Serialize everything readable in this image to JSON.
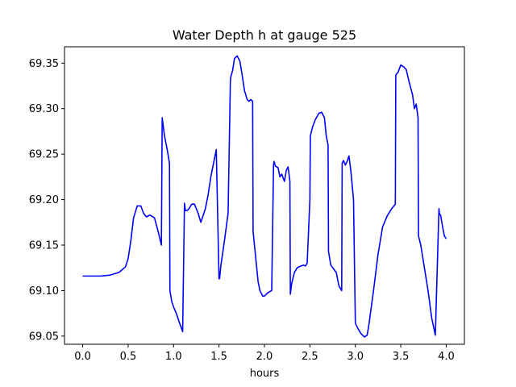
{
  "chart_data": {
    "type": "line",
    "title": "Water Depth h at gauge 525",
    "xlabel": "hours",
    "ylabel": "",
    "xlim": [
      -0.2,
      4.2
    ],
    "ylim": [
      69.041,
      69.368
    ],
    "xticks": [
      0.0,
      0.5,
      1.0,
      1.5,
      2.0,
      2.5,
      3.0,
      3.5,
      4.0
    ],
    "xtick_labels": [
      "0.0",
      "0.5",
      "1.0",
      "1.5",
      "2.0",
      "2.5",
      "3.0",
      "3.5",
      "4.0"
    ],
    "yticks": [
      69.05,
      69.1,
      69.15,
      69.2,
      69.25,
      69.3,
      69.35
    ],
    "ytick_labels": [
      "69.05",
      "69.10",
      "69.15",
      "69.20",
      "69.25",
      "69.30",
      "69.35"
    ],
    "grid": false,
    "series": [
      {
        "color": "#0000ff",
        "x": [
          0.0,
          0.2,
          0.3,
          0.4,
          0.47,
          0.5,
          0.53,
          0.56,
          0.6,
          0.64,
          0.67,
          0.7,
          0.74,
          0.79,
          0.83,
          0.866,
          0.875,
          0.9,
          0.93,
          0.955,
          0.96,
          0.98,
          1.0,
          1.03,
          1.06,
          1.1,
          1.12,
          1.13,
          1.15,
          1.17,
          1.2,
          1.23,
          1.27,
          1.3,
          1.35,
          1.38,
          1.41,
          1.44,
          1.47,
          1.5,
          1.506,
          1.52,
          1.56,
          1.6,
          1.625,
          1.63,
          1.65,
          1.67,
          1.7,
          1.73,
          1.75,
          1.78,
          1.81,
          1.83,
          1.85,
          1.87,
          1.875,
          1.9,
          1.93,
          1.95,
          1.98,
          2.0,
          2.03,
          2.06,
          2.08,
          2.1,
          2.105,
          2.12,
          2.15,
          2.17,
          2.19,
          2.22,
          2.24,
          2.26,
          2.28,
          2.285,
          2.3,
          2.33,
          2.36,
          2.4,
          2.43,
          2.45,
          2.47,
          2.5,
          2.505,
          2.53,
          2.56,
          2.6,
          2.63,
          2.66,
          2.68,
          2.7,
          2.705,
          2.73,
          2.76,
          2.79,
          2.82,
          2.85,
          2.855,
          2.87,
          2.89,
          2.91,
          2.93,
          2.95,
          2.98,
          3.0,
          3.005,
          3.03,
          3.06,
          3.1,
          3.13,
          3.15,
          3.2,
          3.25,
          3.3,
          3.35,
          3.4,
          3.44,
          3.445,
          3.47,
          3.5,
          3.53,
          3.56,
          3.59,
          3.63,
          3.65,
          3.67,
          3.69,
          3.695,
          3.72,
          3.76,
          3.8,
          3.84,
          3.88,
          3.92,
          3.925,
          3.94,
          3.96,
          3.98,
          4.0
        ],
        "y": [
          69.116,
          69.116,
          69.117,
          69.12,
          69.126,
          69.135,
          69.155,
          69.18,
          69.193,
          69.193,
          69.185,
          69.181,
          69.183,
          69.18,
          69.165,
          69.15,
          69.29,
          69.27,
          69.255,
          69.24,
          69.1,
          69.088,
          69.082,
          69.075,
          69.066,
          69.055,
          69.196,
          69.188,
          69.188,
          69.19,
          69.195,
          69.195,
          69.185,
          69.175,
          69.19,
          69.205,
          69.225,
          69.24,
          69.255,
          69.113,
          69.113,
          69.127,
          69.155,
          69.185,
          69.33,
          69.335,
          69.342,
          69.355,
          69.358,
          69.352,
          69.34,
          69.32,
          69.31,
          69.308,
          69.31,
          69.308,
          69.165,
          69.14,
          69.11,
          69.1,
          69.094,
          69.094,
          69.097,
          69.099,
          69.1,
          69.238,
          69.242,
          69.237,
          69.235,
          69.225,
          69.228,
          69.22,
          69.232,
          69.236,
          69.22,
          69.096,
          69.108,
          69.12,
          69.125,
          69.127,
          69.128,
          69.127,
          69.13,
          69.2,
          69.27,
          69.28,
          69.288,
          69.295,
          69.296,
          69.29,
          69.27,
          69.26,
          69.143,
          69.128,
          69.124,
          69.12,
          69.105,
          69.1,
          69.24,
          69.243,
          69.238,
          69.242,
          69.248,
          69.232,
          69.2,
          69.065,
          69.063,
          69.058,
          69.053,
          69.049,
          69.051,
          69.063,
          69.1,
          69.14,
          69.17,
          69.182,
          69.19,
          69.195,
          69.337,
          69.34,
          69.348,
          69.346,
          69.343,
          69.33,
          69.315,
          69.3,
          69.305,
          69.29,
          69.16,
          69.15,
          69.125,
          69.1,
          69.07,
          69.051,
          69.19,
          69.185,
          69.182,
          69.17,
          69.16,
          69.157
        ]
      }
    ]
  }
}
